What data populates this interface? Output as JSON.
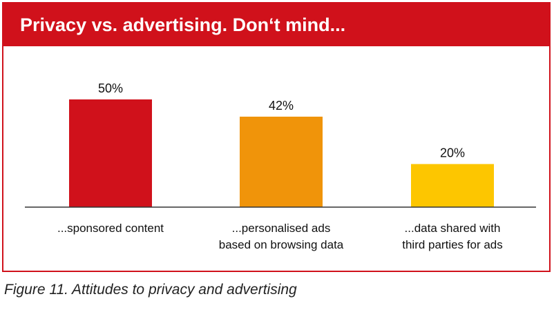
{
  "header": {
    "title": "Privacy vs. advertising. Don‘t mind..."
  },
  "caption": "Figure 11. Attitudes to privacy and advertising",
  "chart_data": {
    "type": "bar",
    "title": "Privacy vs. advertising. Don‘t mind...",
    "categories": [
      [
        "...sponsored content"
      ],
      [
        "...personalised ads",
        "based on browsing data"
      ],
      [
        "...data shared with",
        "third parties for ads"
      ]
    ],
    "values": [
      50,
      42,
      20
    ],
    "value_labels": [
      "50%",
      "42%",
      "20%"
    ],
    "colors": [
      "#d0111b",
      "#f0940a",
      "#fdc600"
    ],
    "ylim": [
      0,
      50
    ],
    "grid": false
  }
}
